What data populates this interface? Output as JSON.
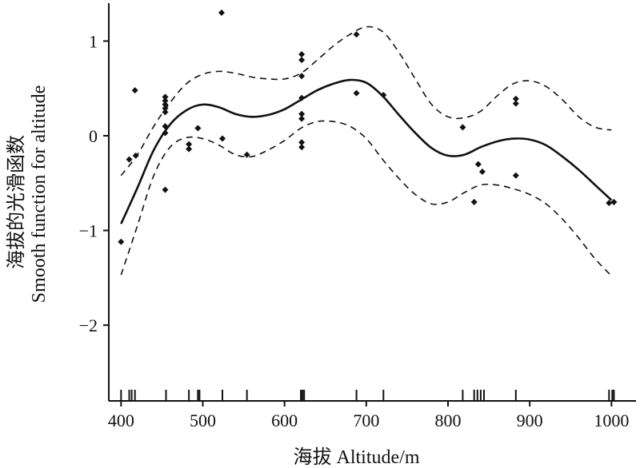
{
  "chart_data": {
    "type": "line",
    "title": "",
    "xlabel": "海拔 Altitude/m",
    "ylabel_line1": "海拔的光滑函数",
    "ylabel_line2": "Smooth function for altitude",
    "xlim": [
      385,
      1030
    ],
    "ylim": [
      -2.8,
      1.4
    ],
    "x_ticks": [
      400,
      500,
      600,
      700,
      800,
      900,
      1000
    ],
    "x_tick_labels": [
      "400",
      "500",
      "600",
      "700",
      "800",
      "900",
      "1000"
    ],
    "y_ticks": [
      1,
      0,
      -1,
      -2
    ],
    "y_tick_labels": [
      "1",
      "0",
      "−1",
      "−2"
    ],
    "grid": false,
    "series": [
      {
        "style": "solid",
        "x": [
          400,
          420,
          440,
          460,
          480,
          500,
          520,
          540,
          560,
          580,
          600,
          620,
          640,
          660,
          680,
          700,
          720,
          740,
          760,
          780,
          800,
          820,
          840,
          860,
          880,
          900,
          920,
          940,
          960,
          980,
          1000
        ],
        "y": [
          -0.93,
          -0.55,
          -0.15,
          0.12,
          0.27,
          0.33,
          0.3,
          0.23,
          0.2,
          0.22,
          0.28,
          0.38,
          0.48,
          0.55,
          0.59,
          0.56,
          0.42,
          0.22,
          0.03,
          -0.13,
          -0.21,
          -0.2,
          -0.12,
          -0.06,
          -0.03,
          -0.04,
          -0.1,
          -0.22,
          -0.36,
          -0.52,
          -0.68
        ]
      },
      {
        "style": "dashed",
        "x": [
          400,
          420,
          440,
          460,
          480,
          500,
          520,
          540,
          560,
          580,
          600,
          620,
          640,
          660,
          680,
          700,
          720,
          740,
          760,
          780,
          800,
          820,
          840,
          860,
          880,
          900,
          920,
          940,
          960,
          980,
          1000
        ],
        "y": [
          -0.42,
          -0.2,
          0.1,
          0.35,
          0.55,
          0.65,
          0.68,
          0.66,
          0.62,
          0.6,
          0.6,
          0.66,
          0.8,
          0.95,
          1.07,
          1.15,
          1.1,
          0.88,
          0.6,
          0.33,
          0.2,
          0.19,
          0.26,
          0.42,
          0.55,
          0.58,
          0.52,
          0.38,
          0.2,
          0.09,
          0.06
        ]
      },
      {
        "style": "dashed",
        "x": [
          400,
          420,
          440,
          460,
          480,
          500,
          520,
          540,
          560,
          580,
          600,
          620,
          640,
          660,
          680,
          700,
          720,
          740,
          760,
          780,
          800,
          820,
          840,
          860,
          880,
          900,
          920,
          940,
          960,
          980,
          1000
        ],
        "y": [
          -1.47,
          -0.95,
          -0.42,
          -0.12,
          -0.02,
          -0.03,
          -0.1,
          -0.2,
          -0.22,
          -0.15,
          -0.05,
          0.08,
          0.15,
          0.15,
          0.1,
          -0.03,
          -0.25,
          -0.45,
          -0.62,
          -0.72,
          -0.7,
          -0.6,
          -0.52,
          -0.52,
          -0.56,
          -0.62,
          -0.72,
          -0.88,
          -1.08,
          -1.3,
          -1.48
        ]
      }
    ],
    "points": [
      {
        "x": 400,
        "y": -1.12
      },
      {
        "x": 410,
        "y": -0.25
      },
      {
        "x": 417,
        "y": 0.48
      },
      {
        "x": 418,
        "y": -0.21
      },
      {
        "x": 454,
        "y": 0.41
      },
      {
        "x": 454,
        "y": 0.37
      },
      {
        "x": 454,
        "y": 0.33
      },
      {
        "x": 454,
        "y": 0.29
      },
      {
        "x": 454,
        "y": 0.25
      },
      {
        "x": 454,
        "y": 0.1
      },
      {
        "x": 454,
        "y": 0.03
      },
      {
        "x": 454,
        "y": -0.57
      },
      {
        "x": 483,
        "y": -0.09
      },
      {
        "x": 483,
        "y": -0.14
      },
      {
        "x": 494,
        "y": 0.08
      },
      {
        "x": 523,
        "y": 1.3
      },
      {
        "x": 524,
        "y": -0.03
      },
      {
        "x": 554,
        "y": -0.2
      },
      {
        "x": 621,
        "y": 0.86
      },
      {
        "x": 621,
        "y": 0.8
      },
      {
        "x": 621,
        "y": 0.63
      },
      {
        "x": 621,
        "y": 0.4
      },
      {
        "x": 621,
        "y": 0.23
      },
      {
        "x": 621,
        "y": 0.18
      },
      {
        "x": 621,
        "y": -0.07
      },
      {
        "x": 621,
        "y": -0.12
      },
      {
        "x": 688,
        "y": 1.07
      },
      {
        "x": 688,
        "y": 0.45
      },
      {
        "x": 721,
        "y": 0.43
      },
      {
        "x": 818,
        "y": 0.09
      },
      {
        "x": 832,
        "y": -0.7
      },
      {
        "x": 837,
        "y": -0.3
      },
      {
        "x": 842,
        "y": -0.38
      },
      {
        "x": 883,
        "y": 0.39
      },
      {
        "x": 883,
        "y": 0.34
      },
      {
        "x": 883,
        "y": -0.42
      },
      {
        "x": 997,
        "y": -0.71
      },
      {
        "x": 1003,
        "y": -0.7
      }
    ],
    "rug": [
      400,
      410,
      413,
      417,
      455,
      483,
      494,
      496,
      524,
      554,
      620,
      622,
      624,
      688,
      721,
      818,
      832,
      836,
      840,
      844,
      883,
      997,
      1001,
      1003
    ]
  }
}
